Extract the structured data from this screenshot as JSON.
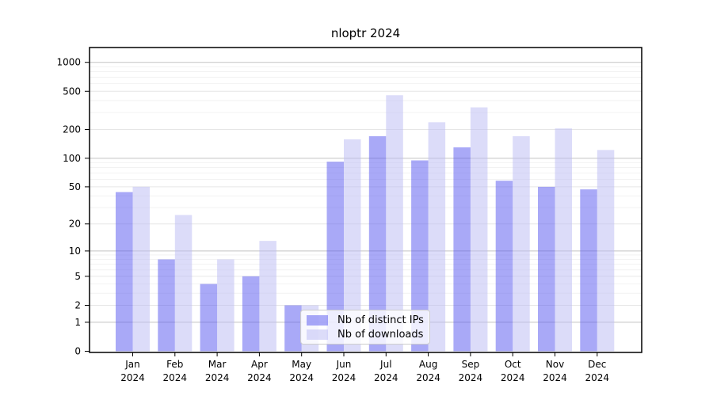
{
  "chart_data": {
    "type": "bar",
    "title": "nloptr 2024",
    "scale": "log1p",
    "categories": [
      "Jan",
      "Feb",
      "Mar",
      "Apr",
      "May",
      "Jun",
      "Jul",
      "Aug",
      "Sep",
      "Oct",
      "Nov",
      "Dec"
    ],
    "category_year": "2024",
    "series": [
      {
        "name": "Nb of distinct IPs",
        "color": "#5353ef",
        "alpha": 0.5,
        "values": [
          44,
          8,
          4,
          5,
          2,
          92,
          170,
          95,
          130,
          58,
          50,
          47
        ]
      },
      {
        "name": "Nb of downloads",
        "color": "#b9b9f3",
        "alpha": 0.5,
        "values": [
          50,
          25,
          8,
          13,
          2,
          158,
          455,
          238,
          340,
          170,
          205,
          122
        ]
      }
    ],
    "yticks": [
      0,
      1,
      2,
      5,
      10,
      20,
      50,
      100,
      200,
      500,
      1000
    ],
    "ylim": [
      0,
      1440
    ],
    "grid": true,
    "grid_major_color": "#c3c3c3",
    "grid_minor_color": "#ededed",
    "axis_color": "#000000",
    "legend_position": "lower center inside"
  }
}
